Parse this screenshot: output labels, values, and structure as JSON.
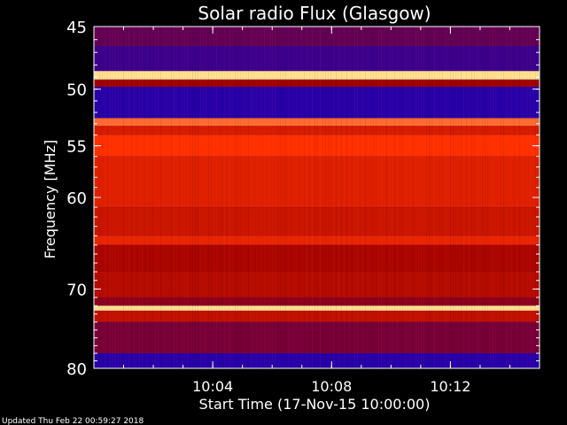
{
  "chart_data": {
    "type": "heatmap",
    "title": "Solar radio Flux (Glasgow)",
    "xlabel": "Start Time (17-Nov-15 10:00:00)",
    "ylabel": "Frequency [MHz]",
    "x_range_minutes": [
      0,
      15
    ],
    "x_ticks": [
      {
        "minute": 4,
        "label": "10:04"
      },
      {
        "minute": 8,
        "label": "10:08"
      },
      {
        "minute": 12,
        "label": "10:12"
      }
    ],
    "y_scale": "log",
    "y_range": [
      45,
      80
    ],
    "y_ticks": [
      {
        "value": 45,
        "label": "45"
      },
      {
        "value": 50,
        "label": "50"
      },
      {
        "value": 55,
        "label": "55"
      },
      {
        "value": 60,
        "label": "60"
      },
      {
        "value": 70,
        "label": "70"
      },
      {
        "value": 80,
        "label": "80"
      }
    ],
    "colors": {
      "low": "#0000e0",
      "mid": "#a00000",
      "high": "#ff3000",
      "peak": "#ffe090"
    },
    "bands": [
      {
        "from": 45.0,
        "to": 46.5,
        "level": 0.25
      },
      {
        "from": 46.5,
        "to": 48.5,
        "level": 0.15
      },
      {
        "from": 48.5,
        "to": 49.2,
        "level": 1.0
      },
      {
        "from": 49.2,
        "to": 49.8,
        "level": 0.4
      },
      {
        "from": 49.8,
        "to": 52.5,
        "level": 0.1
      },
      {
        "from": 52.5,
        "to": 53.2,
        "level": 0.9
      },
      {
        "from": 53.2,
        "to": 54.0,
        "level": 0.65
      },
      {
        "from": 54.0,
        "to": 56.0,
        "level": 0.85
      },
      {
        "from": 56.0,
        "to": 61.0,
        "level": 0.7
      },
      {
        "from": 61.0,
        "to": 64.0,
        "level": 0.6
      },
      {
        "from": 64.0,
        "to": 65.0,
        "level": 0.75
      },
      {
        "from": 65.0,
        "to": 68.0,
        "level": 0.45
      },
      {
        "from": 68.0,
        "to": 71.0,
        "level": 0.5
      },
      {
        "from": 71.0,
        "to": 72.0,
        "level": 0.35
      },
      {
        "from": 72.0,
        "to": 72.6,
        "level": 1.0
      },
      {
        "from": 72.6,
        "to": 74.0,
        "level": 0.55
      },
      {
        "from": 74.0,
        "to": 78.0,
        "level": 0.3
      },
      {
        "from": 78.0,
        "to": 80.0,
        "level": 0.1
      }
    ],
    "footer": "Updated Thu Feb 22 00:59:27 2018"
  }
}
